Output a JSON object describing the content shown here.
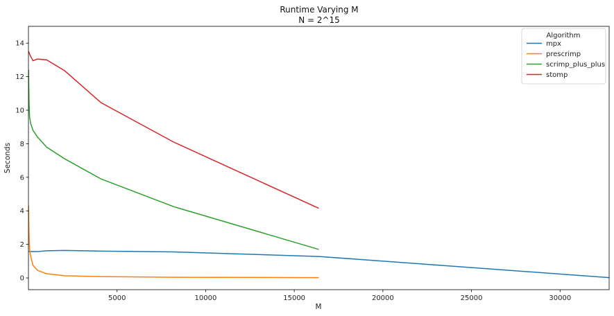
{
  "chart_data": {
    "type": "line",
    "title": "Runtime Varying M",
    "subtitle": "N = 2^15",
    "xlabel": "M",
    "ylabel": "Seconds",
    "xlim": [
      0,
      32768
    ],
    "ylim": [
      -0.7,
      15
    ],
    "xticks": [
      5000,
      10000,
      15000,
      20000,
      25000,
      30000
    ],
    "yticks": [
      0,
      2,
      4,
      6,
      8,
      10,
      12,
      14
    ],
    "grid": false,
    "legend": {
      "title": "Algorithm",
      "placement": "top-right"
    },
    "series": [
      {
        "name": "mpx",
        "color": "#1f77b4",
        "x": [
          8,
          16,
          32,
          64,
          128,
          256,
          512,
          1024,
          2048,
          4096,
          8192,
          16384,
          32768
        ],
        "y": [
          1.57,
          1.57,
          1.57,
          1.57,
          1.57,
          1.57,
          1.57,
          1.62,
          1.64,
          1.6,
          1.55,
          1.28,
          0.02
        ]
      },
      {
        "name": "prescrimp",
        "color": "#ff7f0e",
        "x": [
          8,
          16,
          32,
          64,
          128,
          256,
          512,
          1024,
          2048,
          4096,
          8192,
          16384
        ],
        "y": [
          4.3,
          3.4,
          2.6,
          1.7,
          1.3,
          0.75,
          0.45,
          0.25,
          0.13,
          0.08,
          0.04,
          0.02
        ]
      },
      {
        "name": "scrimp_plus_plus",
        "color": "#2ca02c",
        "x": [
          8,
          16,
          32,
          64,
          128,
          256,
          512,
          1024,
          2048,
          4096,
          8192,
          16384
        ],
        "y": [
          12.4,
          11.6,
          10.6,
          9.6,
          9.2,
          8.8,
          8.4,
          7.8,
          7.1,
          5.9,
          4.25,
          1.7
        ]
      },
      {
        "name": "stomp",
        "color": "#d62728",
        "x": [
          8,
          16,
          32,
          64,
          128,
          256,
          512,
          1024,
          2048,
          4096,
          8192,
          16384
        ],
        "y": [
          13.45,
          13.5,
          13.45,
          13.35,
          13.2,
          12.95,
          13.05,
          13.0,
          12.35,
          10.45,
          8.1,
          4.15
        ]
      }
    ]
  }
}
